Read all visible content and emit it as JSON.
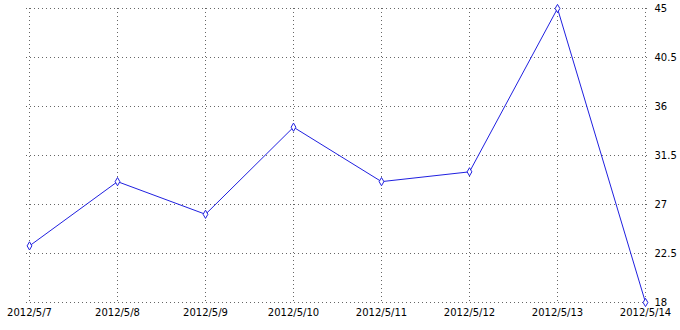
{
  "chart_data": {
    "type": "line",
    "categories": [
      "2012/5/7",
      "2012/5/8",
      "2012/5/9",
      "2012/5/10",
      "2012/5/11",
      "2012/5/12",
      "2012/5/13",
      "2012/5/14"
    ],
    "values": [
      23.2,
      29.1,
      26.1,
      34.1,
      29.1,
      30.0,
      45,
      18
    ],
    "color": "#2020e0",
    "marker": "diamond",
    "ylim": [
      18,
      45
    ],
    "yticks": [
      18,
      22.5,
      27,
      31.5,
      36,
      40.5,
      45
    ],
    "grid": true
  }
}
